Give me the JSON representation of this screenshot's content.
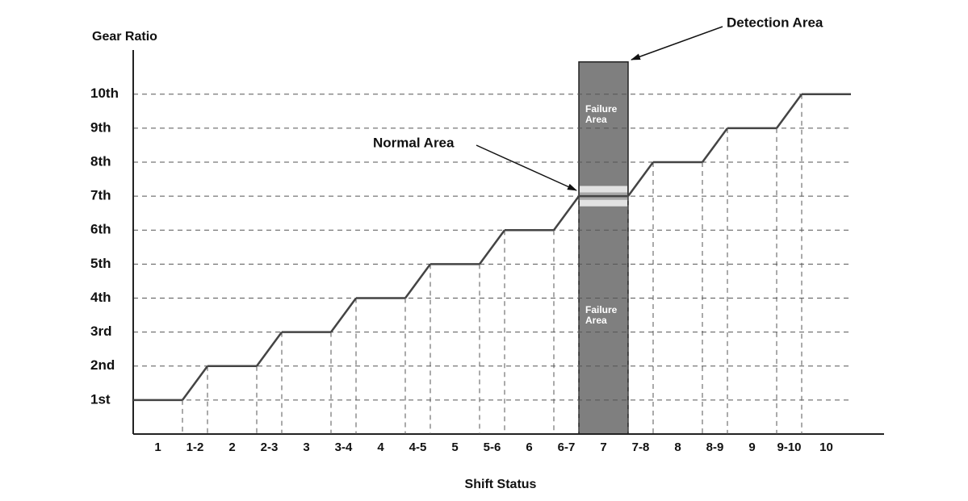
{
  "chart_data": {
    "type": "line",
    "y_label": "Gear Ratio",
    "x_label": "Shift Status",
    "categories": [
      "1",
      "1-2",
      "2",
      "2-3",
      "3",
      "3-4",
      "4",
      "4-5",
      "5",
      "5-6",
      "6",
      "6-7",
      "7",
      "7-8",
      "8",
      "8-9",
      "9",
      "9-10",
      "10"
    ],
    "values": [
      1,
      null,
      2,
      null,
      3,
      null,
      4,
      null,
      5,
      null,
      6,
      null,
      7,
      null,
      8,
      null,
      9,
      null,
      10
    ],
    "color": "#444444",
    "ylim": [
      0,
      11.3
    ],
    "yticks": [
      {
        "value": 1,
        "label": "1st"
      },
      {
        "value": 2,
        "label": "2nd"
      },
      {
        "value": 3,
        "label": "3rd"
      },
      {
        "value": 4,
        "label": "4th"
      },
      {
        "value": 5,
        "label": "5th"
      },
      {
        "value": 6,
        "label": "6th"
      },
      {
        "value": 7,
        "label": "7th"
      },
      {
        "value": 8,
        "label": "8th"
      },
      {
        "value": 9,
        "label": "9th"
      },
      {
        "value": 10,
        "label": "10th"
      }
    ],
    "grid": true,
    "detection_area": {
      "label": "Detection Area",
      "category": "7",
      "top": 10.95,
      "color": "#7f7f7f",
      "normal_label": "Normal Area",
      "normal_range": [
        6.7,
        7.3
      ],
      "failure_labels": [
        "Failure Area",
        "Failure Area"
      ]
    }
  }
}
